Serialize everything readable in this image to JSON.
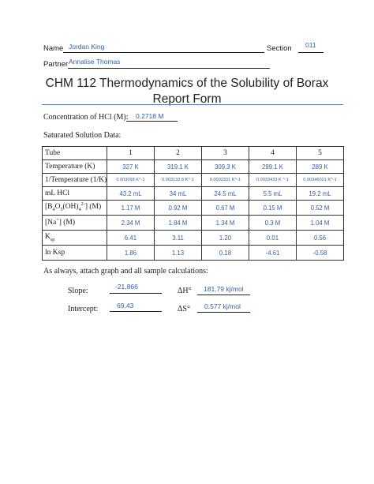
{
  "header": {
    "name_label": "Name",
    "name_value": "Jordan King",
    "section_label": "Section",
    "section_value": "011",
    "partner_label": "Partner",
    "partner_value": "Annalise Thomas"
  },
  "title": {
    "line1": "CHM 112 Thermodynamics of the Solubility of Borax",
    "line2": "Report Form"
  },
  "hcl": {
    "label": "Concentration of HCl (M):",
    "value": "0.2718 M"
  },
  "saturated_label": "Saturated Solution Data:",
  "table": {
    "columns": [
      "Tube",
      "1",
      "2",
      "3",
      "4",
      "5"
    ],
    "rows": [
      {
        "label": "Temperature (K)",
        "values": [
          "327 K",
          "319.1 K",
          "309.3 K",
          "299.1 K",
          "289 K"
        ]
      },
      {
        "label": "1/Temperature (1/K)",
        "values": [
          "0.003058 K^-1",
          "0.003133 8 K^-1",
          "0.0032331 K^-1",
          "0.0033433 K ^-1",
          "0.00346021 K^-1"
        ]
      },
      {
        "label": "mL HCl",
        "values": [
          "43.2 mL",
          "34 mL",
          "24.5 mL",
          "5.5 mL",
          "19.2 mL"
        ]
      },
      {
        "label_prefix": "[B",
        "label_suffix": " (M)",
        "values": [
          "1.17 M",
          "0.92 M",
          "0.67 M",
          "0.15 M",
          "0.52 M"
        ]
      },
      {
        "label_prefix": "[Na",
        "label_suffix": "] (M)",
        "values": [
          "2.34 M",
          "1.84 M",
          "1.34 M",
          "0.3 M",
          "1.04 M"
        ]
      },
      {
        "label_prefix": "K",
        "label_sub": "sp",
        "values": [
          "6.41",
          "3.11",
          "1.20",
          "0.01",
          "0.56"
        ]
      },
      {
        "label": "ln Ksp",
        "values": [
          "1.86",
          "1.13",
          "0.18",
          "-4.61",
          "-0.58"
        ]
      }
    ]
  },
  "attach_note": "As always, attach graph and all sample calculations:",
  "results": {
    "slope_label": "Slope:",
    "slope_value": "-21,866",
    "dh_label": "ΔH°",
    "dh_value": "181.79 kj/mol",
    "intercept_label": "Intercept:",
    "intercept_value": "69.43",
    "ds_label": "ΔS°",
    "ds_value": "0.577 kj/mol"
  }
}
